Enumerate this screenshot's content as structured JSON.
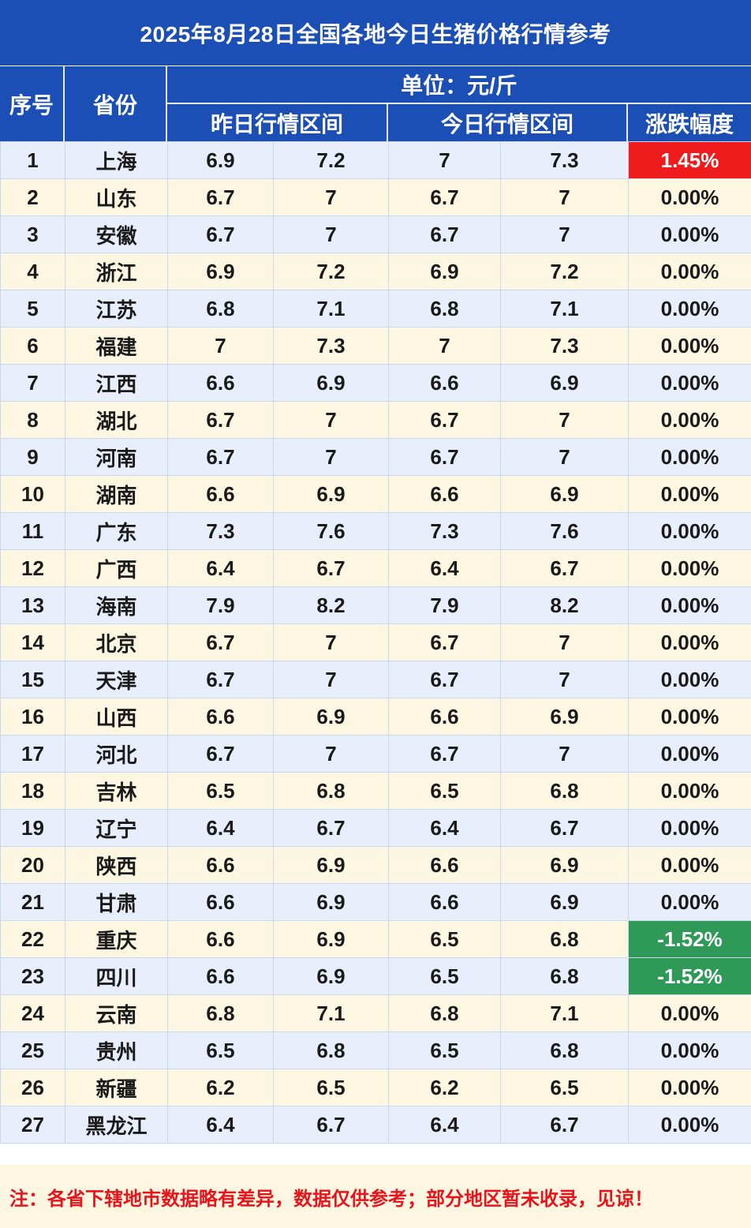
{
  "title": "2025年8月28日全国各地今日生猪价格行情参考",
  "headers": {
    "index": "序号",
    "province": "省份",
    "unit": "单位：元/斤",
    "yesterday": "昨日行情区间",
    "today": "今日行情区间",
    "change": "涨跌幅度"
  },
  "colors": {
    "header_blue": "#1c4fb5",
    "row_blue": "#e8eefb",
    "row_cream": "#fdf7e2",
    "up_red": "#ee1c1c",
    "down_green": "#2f9a58",
    "note_red": "#e8131b"
  },
  "rows": [
    {
      "idx": "1",
      "province": "上海",
      "y_low": "6.9",
      "y_high": "7.2",
      "t_low": "7",
      "t_high": "7.3",
      "change": "1.45%",
      "trend": "up"
    },
    {
      "idx": "2",
      "province": "山东",
      "y_low": "6.7",
      "y_high": "7",
      "t_low": "6.7",
      "t_high": "7",
      "change": "0.00%",
      "trend": "flat"
    },
    {
      "idx": "3",
      "province": "安徽",
      "y_low": "6.7",
      "y_high": "7",
      "t_low": "6.7",
      "t_high": "7",
      "change": "0.00%",
      "trend": "flat"
    },
    {
      "idx": "4",
      "province": "浙江",
      "y_low": "6.9",
      "y_high": "7.2",
      "t_low": "6.9",
      "t_high": "7.2",
      "change": "0.00%",
      "trend": "flat"
    },
    {
      "idx": "5",
      "province": "江苏",
      "y_low": "6.8",
      "y_high": "7.1",
      "t_low": "6.8",
      "t_high": "7.1",
      "change": "0.00%",
      "trend": "flat"
    },
    {
      "idx": "6",
      "province": "福建",
      "y_low": "7",
      "y_high": "7.3",
      "t_low": "7",
      "t_high": "7.3",
      "change": "0.00%",
      "trend": "flat"
    },
    {
      "idx": "7",
      "province": "江西",
      "y_low": "6.6",
      "y_high": "6.9",
      "t_low": "6.6",
      "t_high": "6.9",
      "change": "0.00%",
      "trend": "flat"
    },
    {
      "idx": "8",
      "province": "湖北",
      "y_low": "6.7",
      "y_high": "7",
      "t_low": "6.7",
      "t_high": "7",
      "change": "0.00%",
      "trend": "flat"
    },
    {
      "idx": "9",
      "province": "河南",
      "y_low": "6.7",
      "y_high": "7",
      "t_low": "6.7",
      "t_high": "7",
      "change": "0.00%",
      "trend": "flat"
    },
    {
      "idx": "10",
      "province": "湖南",
      "y_low": "6.6",
      "y_high": "6.9",
      "t_low": "6.6",
      "t_high": "6.9",
      "change": "0.00%",
      "trend": "flat"
    },
    {
      "idx": "11",
      "province": "广东",
      "y_low": "7.3",
      "y_high": "7.6",
      "t_low": "7.3",
      "t_high": "7.6",
      "change": "0.00%",
      "trend": "flat"
    },
    {
      "idx": "12",
      "province": "广西",
      "y_low": "6.4",
      "y_high": "6.7",
      "t_low": "6.4",
      "t_high": "6.7",
      "change": "0.00%",
      "trend": "flat"
    },
    {
      "idx": "13",
      "province": "海南",
      "y_low": "7.9",
      "y_high": "8.2",
      "t_low": "7.9",
      "t_high": "8.2",
      "change": "0.00%",
      "trend": "flat"
    },
    {
      "idx": "14",
      "province": "北京",
      "y_low": "6.7",
      "y_high": "7",
      "t_low": "6.7",
      "t_high": "7",
      "change": "0.00%",
      "trend": "flat"
    },
    {
      "idx": "15",
      "province": "天津",
      "y_low": "6.7",
      "y_high": "7",
      "t_low": "6.7",
      "t_high": "7",
      "change": "0.00%",
      "trend": "flat"
    },
    {
      "idx": "16",
      "province": "山西",
      "y_low": "6.6",
      "y_high": "6.9",
      "t_low": "6.6",
      "t_high": "6.9",
      "change": "0.00%",
      "trend": "flat"
    },
    {
      "idx": "17",
      "province": "河北",
      "y_low": "6.7",
      "y_high": "7",
      "t_low": "6.7",
      "t_high": "7",
      "change": "0.00%",
      "trend": "flat"
    },
    {
      "idx": "18",
      "province": "吉林",
      "y_low": "6.5",
      "y_high": "6.8",
      "t_low": "6.5",
      "t_high": "6.8",
      "change": "0.00%",
      "trend": "flat"
    },
    {
      "idx": "19",
      "province": "辽宁",
      "y_low": "6.4",
      "y_high": "6.7",
      "t_low": "6.4",
      "t_high": "6.7",
      "change": "0.00%",
      "trend": "flat"
    },
    {
      "idx": "20",
      "province": "陕西",
      "y_low": "6.6",
      "y_high": "6.9",
      "t_low": "6.6",
      "t_high": "6.9",
      "change": "0.00%",
      "trend": "flat"
    },
    {
      "idx": "21",
      "province": "甘肃",
      "y_low": "6.6",
      "y_high": "6.9",
      "t_low": "6.6",
      "t_high": "6.9",
      "change": "0.00%",
      "trend": "flat"
    },
    {
      "idx": "22",
      "province": "重庆",
      "y_low": "6.6",
      "y_high": "6.9",
      "t_low": "6.5",
      "t_high": "6.8",
      "change": "-1.52%",
      "trend": "down"
    },
    {
      "idx": "23",
      "province": "四川",
      "y_low": "6.6",
      "y_high": "6.9",
      "t_low": "6.5",
      "t_high": "6.8",
      "change": "-1.52%",
      "trend": "down"
    },
    {
      "idx": "24",
      "province": "云南",
      "y_low": "6.8",
      "y_high": "7.1",
      "t_low": "6.8",
      "t_high": "7.1",
      "change": "0.00%",
      "trend": "flat"
    },
    {
      "idx": "25",
      "province": "贵州",
      "y_low": "6.5",
      "y_high": "6.8",
      "t_low": "6.5",
      "t_high": "6.8",
      "change": "0.00%",
      "trend": "flat"
    },
    {
      "idx": "26",
      "province": "新疆",
      "y_low": "6.2",
      "y_high": "6.5",
      "t_low": "6.2",
      "t_high": "6.5",
      "change": "0.00%",
      "trend": "flat"
    },
    {
      "idx": "27",
      "province": "黑龙江",
      "y_low": "6.4",
      "y_high": "6.7",
      "t_low": "6.4",
      "t_high": "6.7",
      "change": "0.00%",
      "trend": "flat"
    }
  ],
  "note": "注：各省下辖地市数据略有差异，数据仅供参考；部分地区暂未收录，见谅！"
}
